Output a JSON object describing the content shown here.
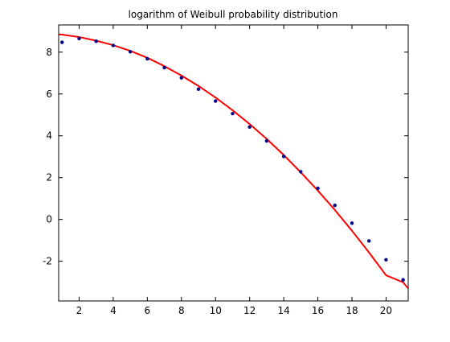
{
  "chart_data": {
    "type": "scatter",
    "title": "logarithm of Weibull probability distribution",
    "xlabel": "",
    "ylabel": "",
    "xlim": [
      0.8,
      21.3
    ],
    "ylim": [
      -3.9,
      9.3
    ],
    "grid": false,
    "x_ticks": [
      2,
      4,
      6,
      8,
      10,
      12,
      14,
      16,
      18,
      20
    ],
    "y_ticks": [
      -2,
      0,
      2,
      4,
      6,
      8
    ],
    "series": [
      {
        "kind": "points",
        "color": "#00008b",
        "x": [
          1,
          2,
          3,
          4,
          5,
          6,
          7,
          8,
          9,
          10,
          11,
          12,
          13,
          14,
          15,
          16,
          17,
          18,
          19,
          20,
          21
        ],
        "y": [
          8.47,
          8.65,
          8.52,
          8.32,
          8.02,
          7.68,
          7.26,
          6.77,
          6.23,
          5.66,
          5.06,
          4.42,
          3.75,
          3.01,
          2.28,
          1.49,
          0.67,
          -0.18,
          -1.03,
          -1.93,
          -2.89
        ]
      },
      {
        "kind": "line",
        "color": "#ff0000",
        "x": [
          0.8,
          1,
          2,
          3,
          4,
          5,
          6,
          7,
          8,
          9,
          10,
          11,
          12,
          13,
          14,
          15,
          16,
          17,
          18,
          19,
          20,
          21,
          21.3
        ],
        "y": [
          8.85,
          8.84,
          8.72,
          8.55,
          8.33,
          8.06,
          7.73,
          7.33,
          6.88,
          6.38,
          5.83,
          5.22,
          4.56,
          3.85,
          3.08,
          2.25,
          1.38,
          0.45,
          -0.54,
          -1.58,
          -2.67,
          -3.01,
          -3.3
        ]
      }
    ]
  }
}
